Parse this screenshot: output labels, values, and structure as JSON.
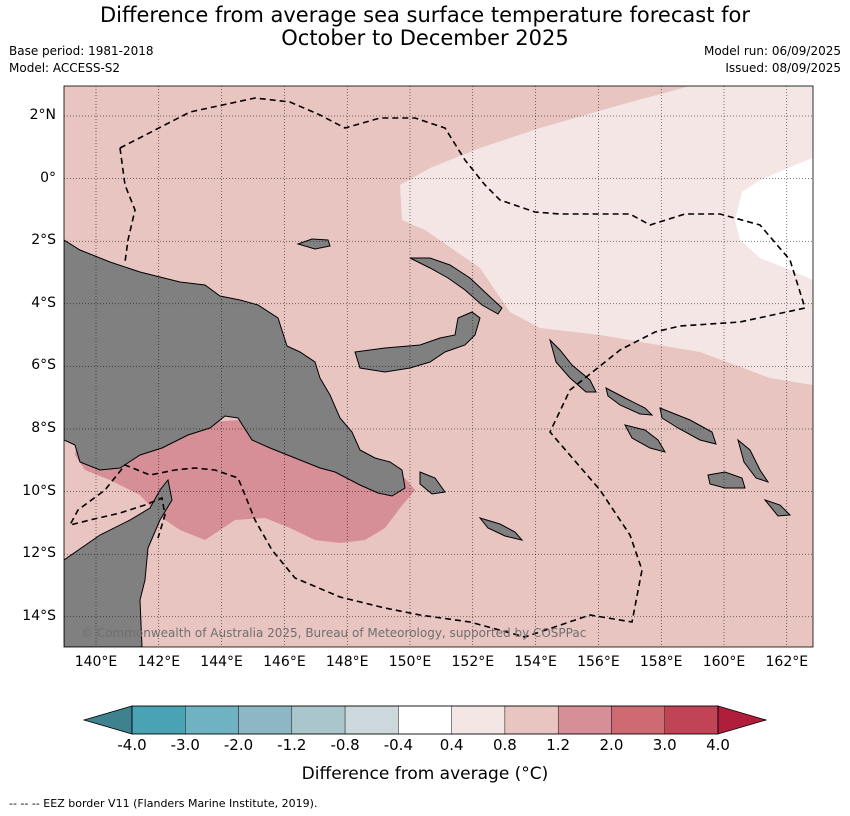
{
  "title": {
    "line1": "Difference from average sea surface temperature forecast for",
    "line2": "October to December 2025"
  },
  "meta": {
    "base_period": "Base period: 1981-2018",
    "model": "Model: ACCESS-S2",
    "model_run": "Model run: 06/09/2025",
    "issued": "Issued: 08/09/2025"
  },
  "map": {
    "lat_labels": [
      "2°N",
      "0°",
      "2°S",
      "4°S",
      "6°S",
      "8°S",
      "10°S",
      "12°S",
      "14°S"
    ],
    "lon_labels": [
      "140°E",
      "142°E",
      "144°E",
      "146°E",
      "148°E",
      "150°E",
      "152°E",
      "154°E",
      "156°E",
      "158°E",
      "160°E",
      "162°E"
    ],
    "copyright": "© Commonwealth of Australia 2025, Bureau of Meteorology, supported by COSPPac",
    "colors": {
      "land": "#808080",
      "band_0.4_0.8": "#f4e6e4",
      "band_0.8_1.2": "#e8c5c1",
      "band_1.2_2.0": "#d68e97"
    }
  },
  "colorbar": {
    "title": "Difference from average (°C)",
    "ticks": [
      "-4.0",
      "-3.0",
      "-2.0",
      "-1.2",
      "-0.8",
      "-0.4",
      "0.4",
      "0.8",
      "1.2",
      "2.0",
      "3.0",
      "4.0"
    ],
    "colors": [
      "#3e8290",
      "#4aa3b4",
      "#6fb2c1",
      "#8db8c3",
      "#a9c6cc",
      "#ccd8dc",
      "#ffffff",
      "#f4e6e4",
      "#e8c5c1",
      "#d68e97",
      "#cd6a72",
      "#c04456",
      "#b01e3c"
    ]
  },
  "footer": "--  --  -- EEZ border V11 (Flanders Marine Institute, 2019)."
}
